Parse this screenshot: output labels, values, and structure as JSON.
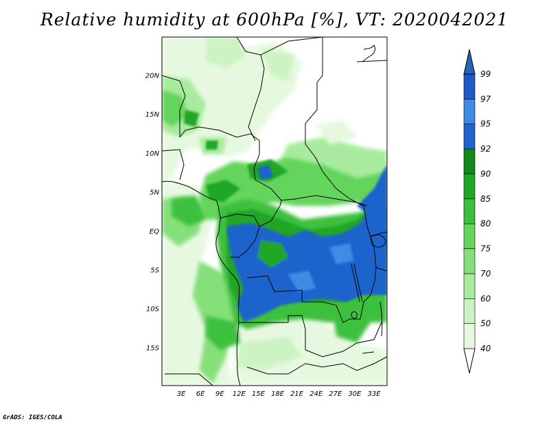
{
  "title": "Relative humidity at 600hPa [%], VT: 2020042021",
  "credit": "GrADS: IGES/COLA",
  "lat_labels": [
    "20N",
    "15N",
    "10N",
    "5N",
    "EQ",
    "5S",
    "10S",
    "15S"
  ],
  "lon_labels": [
    "3E",
    "6E",
    "9E",
    "12E",
    "15E",
    "18E",
    "21E",
    "24E",
    "27E",
    "30E",
    "33E"
  ],
  "colorbar": {
    "labels": [
      "40",
      "50",
      "60",
      "70",
      "75",
      "80",
      "85",
      "90",
      "92",
      "95",
      "97",
      "99"
    ],
    "colors": [
      "#ffffff",
      "#e6f9e0",
      "#cdf3c4",
      "#a8eb9e",
      "#86e07a",
      "#64d45c",
      "#3cc03c",
      "#22a628",
      "#138a19",
      "#1e64cc",
      "#3c8ce6",
      "#1e5ac8",
      "#2864b4"
    ]
  },
  "map": {
    "land": "#ffffff",
    "shading_colors": [
      "#e6f9e0",
      "#cdf3c4",
      "#a8eb9e",
      "#86e07a",
      "#64d45c",
      "#3cc03c",
      "#22a628",
      "#1e64cc",
      "#3c8ce6"
    ]
  }
}
